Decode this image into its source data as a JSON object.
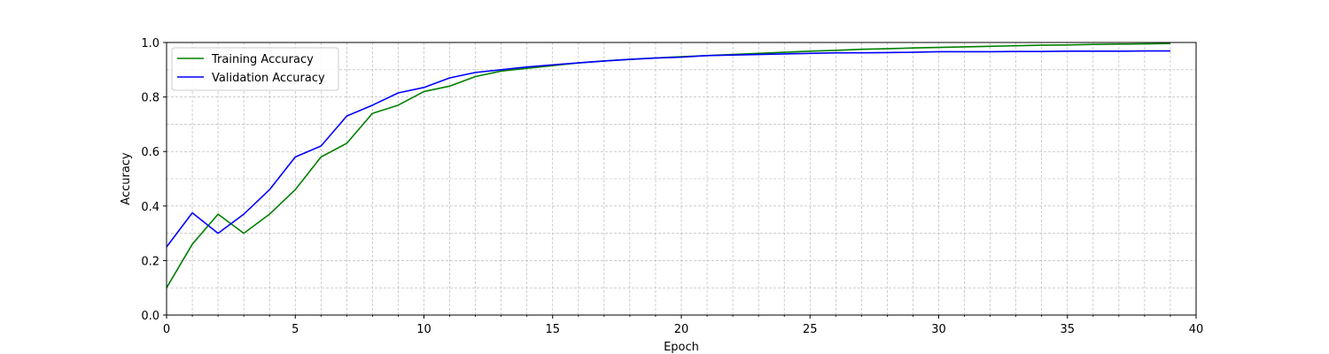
{
  "chart_data": {
    "type": "line",
    "xlabel": "Epoch",
    "ylabel": "Accuracy",
    "xlim": [
      0,
      40
    ],
    "ylim": [
      0,
      1.0
    ],
    "x_ticks": [
      0,
      5,
      10,
      15,
      20,
      25,
      30,
      35,
      40
    ],
    "x_tick_labels": [
      "0",
      "5",
      "10",
      "15",
      "20",
      "25",
      "30",
      "35",
      "40"
    ],
    "y_ticks": [
      0.0,
      0.2,
      0.4,
      0.6,
      0.8,
      1.0
    ],
    "y_tick_labels": [
      "0.0",
      "0.2",
      "0.4",
      "0.6",
      "0.8",
      "1.0"
    ],
    "grid": true,
    "grid_style": "dashed, major and minor",
    "legend_position": "top-left",
    "x": [
      0,
      1,
      2,
      3,
      4,
      5,
      6,
      7,
      8,
      9,
      10,
      11,
      12,
      13,
      14,
      15,
      16,
      17,
      18,
      19,
      20,
      21,
      22,
      23,
      24,
      25,
      26,
      27,
      28,
      29,
      30,
      31,
      32,
      33,
      34,
      35,
      36,
      37,
      38,
      39
    ],
    "series": [
      {
        "name": "Training Accuracy",
        "color": "#008000",
        "values": [
          0.1,
          0.26,
          0.37,
          0.3,
          0.37,
          0.46,
          0.58,
          0.63,
          0.74,
          0.77,
          0.82,
          0.84,
          0.875,
          0.895,
          0.905,
          0.915,
          0.925,
          0.932,
          0.938,
          0.943,
          0.948,
          0.952,
          0.956,
          0.96,
          0.964,
          0.968,
          0.971,
          0.975,
          0.977,
          0.98,
          0.982,
          0.984,
          0.986,
          0.988,
          0.99,
          0.991,
          0.993,
          0.994,
          0.995,
          0.996
        ]
      },
      {
        "name": "Validation Accuracy",
        "color": "#0000ff",
        "values": [
          0.25,
          0.375,
          0.3,
          0.37,
          0.46,
          0.58,
          0.62,
          0.73,
          0.77,
          0.815,
          0.835,
          0.87,
          0.89,
          0.9,
          0.91,
          0.918,
          0.925,
          0.932,
          0.938,
          0.943,
          0.946,
          0.952,
          0.954,
          0.956,
          0.958,
          0.96,
          0.962,
          0.962,
          0.963,
          0.964,
          0.966,
          0.966,
          0.966,
          0.967,
          0.967,
          0.968,
          0.968,
          0.968,
          0.969,
          0.969
        ]
      }
    ]
  }
}
